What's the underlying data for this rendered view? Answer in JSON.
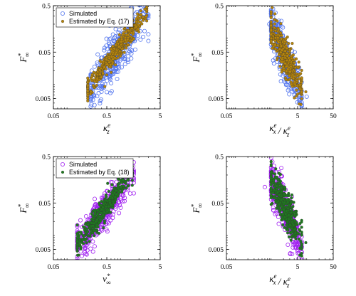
{
  "chart_data": [
    {
      "type": "scatter",
      "panel": "top-left",
      "xlabel": "κ_z^e",
      "ylabel": "F_∞^*",
      "xscale": "log",
      "yscale": "log",
      "xlim": [
        0.05,
        5
      ],
      "ylim": [
        0.003,
        0.5
      ],
      "xticks": [
        "0.05",
        "0.5",
        "5"
      ],
      "yticks": [
        "0.005",
        "0.05",
        "0.5"
      ],
      "legend": {
        "position": "top-left",
        "entries": [
          "Simulated",
          "Estimated by Eq. (17)"
        ]
      },
      "series": [
        {
          "name": "Simulated",
          "marker": "open-circle",
          "color": "#5577ee",
          "cloud": {
            "x_range": [
              0.25,
              3.0
            ],
            "y_at_xmin": 0.008,
            "y_at_xmax": 0.38,
            "spread": 0.5,
            "count": 420
          },
          "points": [
            [
              0.25,
              0.0045
            ],
            [
              0.28,
              0.0085
            ],
            [
              2.8,
              0.3
            ]
          ]
        },
        {
          "name": "Estimated by Eq. (17)",
          "marker": "filled-circle",
          "color": "#b8860b",
          "cloud": {
            "x_range": [
              0.22,
              2.8
            ],
            "y_at_xmin": 0.0085,
            "y_at_xmax": 0.36,
            "spread": 0.22,
            "count": 420
          },
          "points": []
        }
      ]
    },
    {
      "type": "scatter",
      "panel": "top-right",
      "xlabel": "κ_x^e / κ_z^e",
      "ylabel": "F_∞^*",
      "xscale": "log",
      "yscale": "log",
      "xlim": [
        0.05,
        50
      ],
      "ylim": [
        0.003,
        0.5
      ],
      "xticks": [
        "0.05",
        "5",
        "50"
      ],
      "yticks": [
        "0.005",
        "0.05",
        "0.5"
      ],
      "series": [
        {
          "name": "Simulated",
          "marker": "open-circle",
          "color": "#5577ee",
          "cloud": {
            "x_range": [
              0.9,
              6.5
            ],
            "y_at_xmin": 0.18,
            "y_at_xmax": 0.006,
            "spread": 0.45,
            "count": 420
          },
          "points": [
            [
              0.8,
              0.2
            ],
            [
              9.0,
              0.0055
            ]
          ]
        },
        {
          "name": "Estimated by Eq. (17)",
          "marker": "filled-circle",
          "color": "#b8860b",
          "cloud": {
            "x_range": [
              0.9,
              6.5
            ],
            "y_at_xmin": 0.16,
            "y_at_xmax": 0.008,
            "spread": 0.4,
            "count": 420
          },
          "points": [
            [
              8.5,
              0.007
            ]
          ]
        }
      ]
    },
    {
      "type": "scatter",
      "panel": "bottom-left",
      "xlabel": "v_∞^*",
      "ylabel": "F_∞^*",
      "xscale": "log",
      "yscale": "log",
      "xlim": [
        0.05,
        5
      ],
      "ylim": [
        0.003,
        0.5
      ],
      "xticks": [
        "0.05",
        "0.5",
        "5"
      ],
      "yticks": [
        "0.005",
        "0.05",
        "0.5"
      ],
      "legend": {
        "position": "top-left",
        "entries": [
          "Simulated",
          "Estimated by Eq. (18)"
        ]
      },
      "series": [
        {
          "name": "Simulated",
          "marker": "open-circle",
          "color": "#a020f0",
          "cloud": {
            "x_range": [
              0.14,
              1.6
            ],
            "y_at_xmin": 0.006,
            "y_at_xmax": 0.23,
            "spread": 0.42,
            "count": 420
          },
          "points": [
            [
              0.14,
              0.0062
            ],
            [
              0.2,
              0.004
            ]
          ]
        },
        {
          "name": "Estimated by Eq. (18)",
          "marker": "filled-circle",
          "color": "#1f7a1f",
          "cloud": {
            "x_range": [
              0.14,
              1.5
            ],
            "y_at_xmin": 0.006,
            "y_at_xmax": 0.25,
            "spread": 0.25,
            "count": 420
          },
          "points": [
            [
              0.14,
              0.0055
            ]
          ]
        }
      ]
    },
    {
      "type": "scatter",
      "panel": "bottom-right",
      "xlabel": "κ_x^e / κ_z^e",
      "ylabel": "F_∞^*",
      "xscale": "log",
      "yscale": "log",
      "xlim": [
        0.05,
        50
      ],
      "ylim": [
        0.003,
        0.5
      ],
      "xticks": [
        "0.05",
        "5",
        "50"
      ],
      "yticks": [
        "0.005",
        "0.05",
        "0.5"
      ],
      "series": [
        {
          "name": "Simulated",
          "marker": "open-circle",
          "color": "#a020f0",
          "cloud": {
            "x_range": [
              0.9,
              6.5
            ],
            "y_at_xmin": 0.15,
            "y_at_xmax": 0.006,
            "spread": 0.45,
            "count": 420
          },
          "points": [
            [
              0.6,
              0.11
            ],
            [
              3.5,
              0.004
            ]
          ]
        },
        {
          "name": "Estimated by Eq. (18)",
          "marker": "filled-circle",
          "color": "#1f7a1f",
          "cloud": {
            "x_range": [
              0.9,
              6.5
            ],
            "y_at_xmin": 0.16,
            "y_at_xmax": 0.008,
            "spread": 0.4,
            "count": 420
          },
          "points": [
            [
              8.5,
              0.007
            ]
          ]
        }
      ]
    }
  ]
}
